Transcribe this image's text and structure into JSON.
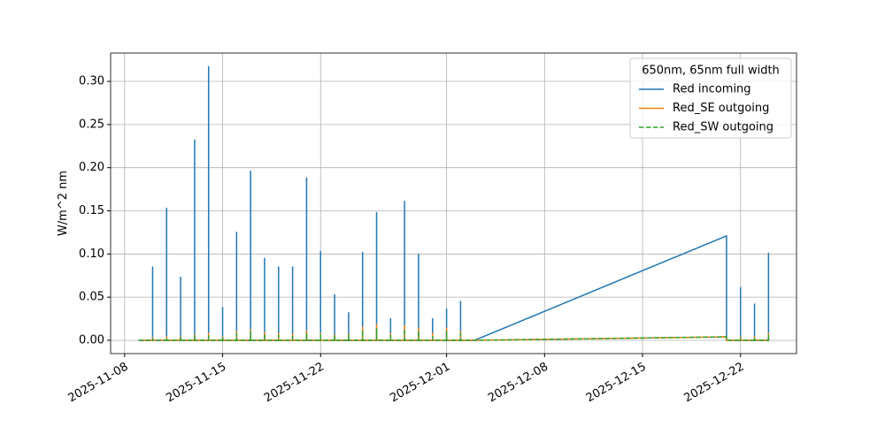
{
  "chart_data": {
    "type": "line",
    "ylabel": "W/m^2 nm",
    "legend_title": "650nm, 65nm full width",
    "legend": "upper right",
    "grid": true,
    "x": [
      "2025-11-09",
      "2025-11-10",
      "2025-11-10",
      "2025-11-10",
      "2025-11-11",
      "2025-11-11",
      "2025-11-11",
      "2025-11-12",
      "2025-11-12",
      "2025-11-12",
      "2025-11-13",
      "2025-11-13",
      "2025-11-13",
      "2025-11-14",
      "2025-11-14",
      "2025-11-14",
      "2025-11-15",
      "2025-11-15",
      "2025-11-15",
      "2025-11-16",
      "2025-11-16",
      "2025-11-16",
      "2025-11-17",
      "2025-11-17",
      "2025-11-17",
      "2025-11-18",
      "2025-11-18",
      "2025-11-18",
      "2025-11-19",
      "2025-11-19",
      "2025-11-19",
      "2025-11-20",
      "2025-11-20",
      "2025-11-20",
      "2025-11-21",
      "2025-11-21",
      "2025-11-21",
      "2025-11-22",
      "2025-11-22",
      "2025-11-22",
      "2025-11-23",
      "2025-11-23",
      "2025-11-23",
      "2025-11-24",
      "2025-11-24",
      "2025-11-24",
      "2025-11-25",
      "2025-11-25",
      "2025-11-25",
      "2025-11-26",
      "2025-11-26",
      "2025-11-26",
      "2025-11-27",
      "2025-11-27",
      "2025-11-27",
      "2025-11-28",
      "2025-11-28",
      "2025-11-28",
      "2025-11-29",
      "2025-11-29",
      "2025-11-29",
      "2025-11-30",
      "2025-11-30",
      "2025-11-30",
      "2025-12-01",
      "2025-12-01",
      "2025-12-01",
      "2025-12-02",
      "2025-12-02",
      "2025-12-02",
      "2025-12-03",
      "2025-12-21",
      "2025-12-21",
      "2025-12-22",
      "2025-12-22",
      "2025-12-22",
      "2025-12-23",
      "2025-12-23",
      "2025-12-23",
      "2025-12-24",
      "2025-12-24",
      "2025-12-24"
    ],
    "series": [
      {
        "name": "Red incoming",
        "color": "#1f77b4",
        "style": "solid",
        "values": [
          0,
          0,
          0.085,
          0,
          0,
          0.153,
          0,
          0,
          0.073,
          0,
          0,
          0.232,
          0,
          0,
          0.317,
          0,
          0,
          0.038,
          0,
          0,
          0.125,
          0,
          0,
          0.196,
          0,
          0,
          0.095,
          0,
          0,
          0.085,
          0,
          0,
          0.085,
          0,
          0,
          0.188,
          0,
          0,
          0.103,
          0,
          0,
          0.053,
          0,
          0,
          0.032,
          0,
          0,
          0.102,
          0,
          0,
          0.148,
          0,
          0,
          0.025,
          0,
          0,
          0.161,
          0,
          0,
          0.1,
          0,
          0,
          0.025,
          0,
          0,
          0.036,
          0,
          0,
          0.045,
          0,
          0,
          0.121,
          0,
          0,
          0.061,
          0,
          0,
          0.042,
          0,
          0,
          0.101,
          0
        ]
      },
      {
        "name": "Red_SE outgoing",
        "color": "#ff7f0e",
        "style": "solid",
        "values": [
          0,
          0,
          0.003,
          0,
          0,
          0.004,
          0,
          0,
          0.004,
          0,
          0,
          0.006,
          0,
          0,
          0.008,
          0,
          0,
          0.004,
          0,
          0,
          0.01,
          0,
          0,
          0.012,
          0,
          0,
          0.009,
          0,
          0,
          0.008,
          0,
          0,
          0.007,
          0,
          0,
          0.011,
          0,
          0,
          0.008,
          0,
          0,
          0.006,
          0,
          0,
          0.007,
          0,
          0,
          0.015,
          0,
          0,
          0.018,
          0,
          0,
          0.008,
          0,
          0,
          0.017,
          0,
          0,
          0.014,
          0,
          0,
          0.008,
          0,
          0,
          0.014,
          0,
          0,
          0.01,
          0,
          0,
          0.004,
          0,
          0,
          0.004,
          0,
          0,
          0.004,
          0,
          0,
          0.008,
          0
        ]
      },
      {
        "name": "Red_SW outgoing",
        "color": "#2ca02c",
        "style": "dashed",
        "values": [
          0,
          0,
          0.002,
          0,
          0,
          0.003,
          0,
          0,
          0.003,
          0,
          0,
          0.005,
          0,
          0,
          0.006,
          0,
          0,
          0.003,
          0,
          0,
          0.008,
          0,
          0,
          0.01,
          0,
          0,
          0.007,
          0,
          0,
          0.006,
          0,
          0,
          0.006,
          0,
          0,
          0.009,
          0,
          0,
          0.007,
          0,
          0,
          0.005,
          0,
          0,
          0.006,
          0,
          0,
          0.012,
          0,
          0,
          0.014,
          0,
          0,
          0.006,
          0,
          0,
          0.013,
          0,
          0,
          0.011,
          0,
          0,
          0.006,
          0,
          0,
          0.011,
          0,
          0,
          0.008,
          0,
          0,
          0.004,
          0,
          0,
          0.003,
          0,
          0,
          0.003,
          0,
          0,
          0.006,
          0
        ]
      }
    ],
    "xlim": [
      "2025-11-07",
      "2025-12-26"
    ],
    "xticks": [
      "2025-11-08",
      "2025-11-15",
      "2025-11-22",
      "2025-12-01",
      "2025-12-08",
      "2025-12-15",
      "2025-12-22"
    ],
    "ylim": [
      -0.0154,
      0.3328
    ],
    "yticks": [
      {
        "value": 0,
        "label": "0.00"
      },
      {
        "value": 0.05,
        "label": "0.05"
      },
      {
        "value": 0.1,
        "label": "0.10"
      },
      {
        "value": 0.15,
        "label": "0.15"
      },
      {
        "value": 0.2,
        "label": "0.20"
      },
      {
        "value": 0.25,
        "label": "0.25"
      },
      {
        "value": 0.3,
        "label": "0.30"
      }
    ]
  }
}
